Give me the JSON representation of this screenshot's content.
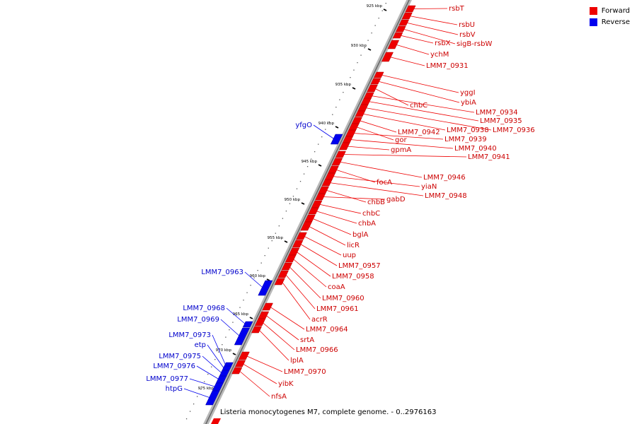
{
  "legend": {
    "forward_label": "Forward",
    "reverse_label": "Reverse",
    "forward_color": "#ee0000",
    "reverse_color": "#0000ee"
  },
  "caption": "Listeria monocytogenes M7, complete genome. - 0..2976163",
  "ticks": [
    "925 kbp",
    "930 kbp",
    "935 kbp",
    "940 kbp",
    "945 kbp",
    "950 kbp",
    "955 kbp",
    "960 kbp",
    "965 kbp",
    "970 kbp",
    "975 kbp"
  ],
  "forward_genes": [
    "rsbT",
    "rsbU",
    "rsbV",
    "sigB-rsbW",
    "rsbX",
    "ychM",
    "LMM7_0931",
    "yggI",
    "ybiA",
    "chbC",
    "LMM7_0934",
    "LMM7_0935",
    "LMM7_0936",
    "LMM7_0938",
    "LMM7_0942",
    "gor",
    "LMM7_0939",
    "LMM7_0940",
    "gpmA",
    "LMM7_0941",
    "LMM7_0946",
    "focA",
    "yiaN",
    "LMM7_0948",
    "chbB",
    "gabD",
    "chbC",
    "chbA",
    "bglA",
    "licR",
    "uup",
    "LMM7_0957",
    "LMM7_0958",
    "coaA",
    "LMM7_0960",
    "LMM7_0961",
    "acrR",
    "LMM7_0964",
    "srtA",
    "LMM7_0966",
    "lplA",
    "LMM7_0970",
    "yibK",
    "nfsA"
  ],
  "reverse_genes": [
    "yfgO",
    "LMM7_0963",
    "LMM7_0968",
    "LMM7_0969",
    "LMM7_0973",
    "etp",
    "LMM7_0975",
    "LMM7_0976",
    "LMM7_0977",
    "htpG"
  ]
}
